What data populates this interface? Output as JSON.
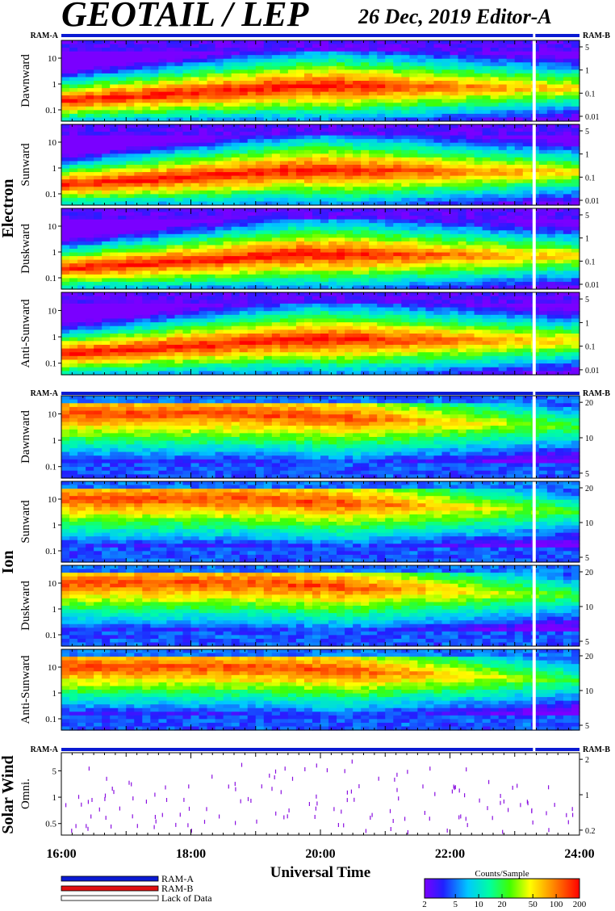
{
  "header": {
    "title": "GEOTAIL / LEP",
    "date_editor": "26 Dec, 2019   Editor-A"
  },
  "chart_data": {
    "type": "heatmap",
    "description_units": "Energy-time spectrograms; color = counts per sample",
    "x": {
      "label": "Universal Time",
      "range_hours": [
        16,
        24
      ],
      "tick_labels": [
        "16:00",
        "18:00",
        "20:00",
        "22:00",
        "24:00"
      ],
      "tick_hours": [
        16,
        18,
        20,
        22,
        24
      ]
    },
    "status_bar": {
      "left_label": "RAM-A",
      "right_label": "RAM-B"
    },
    "data_gaps_hours": [
      23.3
    ],
    "groups": [
      {
        "name": "Electron",
        "panels": [
          {
            "label": "Dawnward",
            "left_ticks": [
              "10",
              "1",
              "0.1"
            ],
            "right_ticks": [
              "5",
              "1",
              "0.1",
              "0.01"
            ]
          },
          {
            "label": "Sunward",
            "left_ticks": [
              "10",
              "1",
              "0.1"
            ],
            "right_ticks": [
              "5",
              "1",
              "0.1",
              "0.01"
            ]
          },
          {
            "label": "Duskward",
            "left_ticks": [
              "10",
              "1",
              "0.1"
            ],
            "right_ticks": [
              "5",
              "1",
              "0.1",
              "0.01"
            ]
          },
          {
            "label": "Anti-Sunward",
            "left_ticks": [
              "10",
              "1",
              "0.1"
            ],
            "right_ticks": [
              "5",
              "1",
              "0.1",
              "0.01"
            ]
          }
        ]
      },
      {
        "name": "Ion",
        "panels": [
          {
            "label": "Dawnward",
            "left_ticks": [
              "10",
              "1",
              "0.1"
            ],
            "right_ticks": [
              "20",
              "10",
              "5"
            ]
          },
          {
            "label": "Sunward",
            "left_ticks": [
              "10",
              "1",
              "0.1"
            ],
            "right_ticks": [
              "20",
              "10",
              "5"
            ]
          },
          {
            "label": "Duskward",
            "left_ticks": [
              "10",
              "1",
              "0.1"
            ],
            "right_ticks": [
              "20",
              "10",
              "5"
            ]
          },
          {
            "label": "Anti-Sunward",
            "left_ticks": [
              "10",
              "1",
              "0.1"
            ],
            "right_ticks": [
              "20",
              "10",
              "5"
            ]
          }
        ]
      },
      {
        "name": "Solar Wind",
        "panels": [
          {
            "label": "Omni.",
            "left_ticks": [
              "5",
              "1",
              "0.5"
            ],
            "right_ticks": [
              "2",
              "1",
              "0.2"
            ]
          }
        ]
      }
    ],
    "legend": {
      "items": [
        {
          "label": "RAM-A",
          "color": "#0a1ad2"
        },
        {
          "label": "RAM-B",
          "color": "#e01010"
        },
        {
          "label": "Lack of Data",
          "color": "#ffffff"
        }
      ]
    },
    "colorbar": {
      "title": "Counts/Sample",
      "scale": "log",
      "tick_labels": [
        "2",
        "5",
        "10",
        "20",
        "50",
        "100",
        "200"
      ],
      "tick_values": [
        2,
        5,
        10,
        20,
        50,
        100,
        200
      ],
      "range": [
        2,
        200
      ]
    }
  }
}
